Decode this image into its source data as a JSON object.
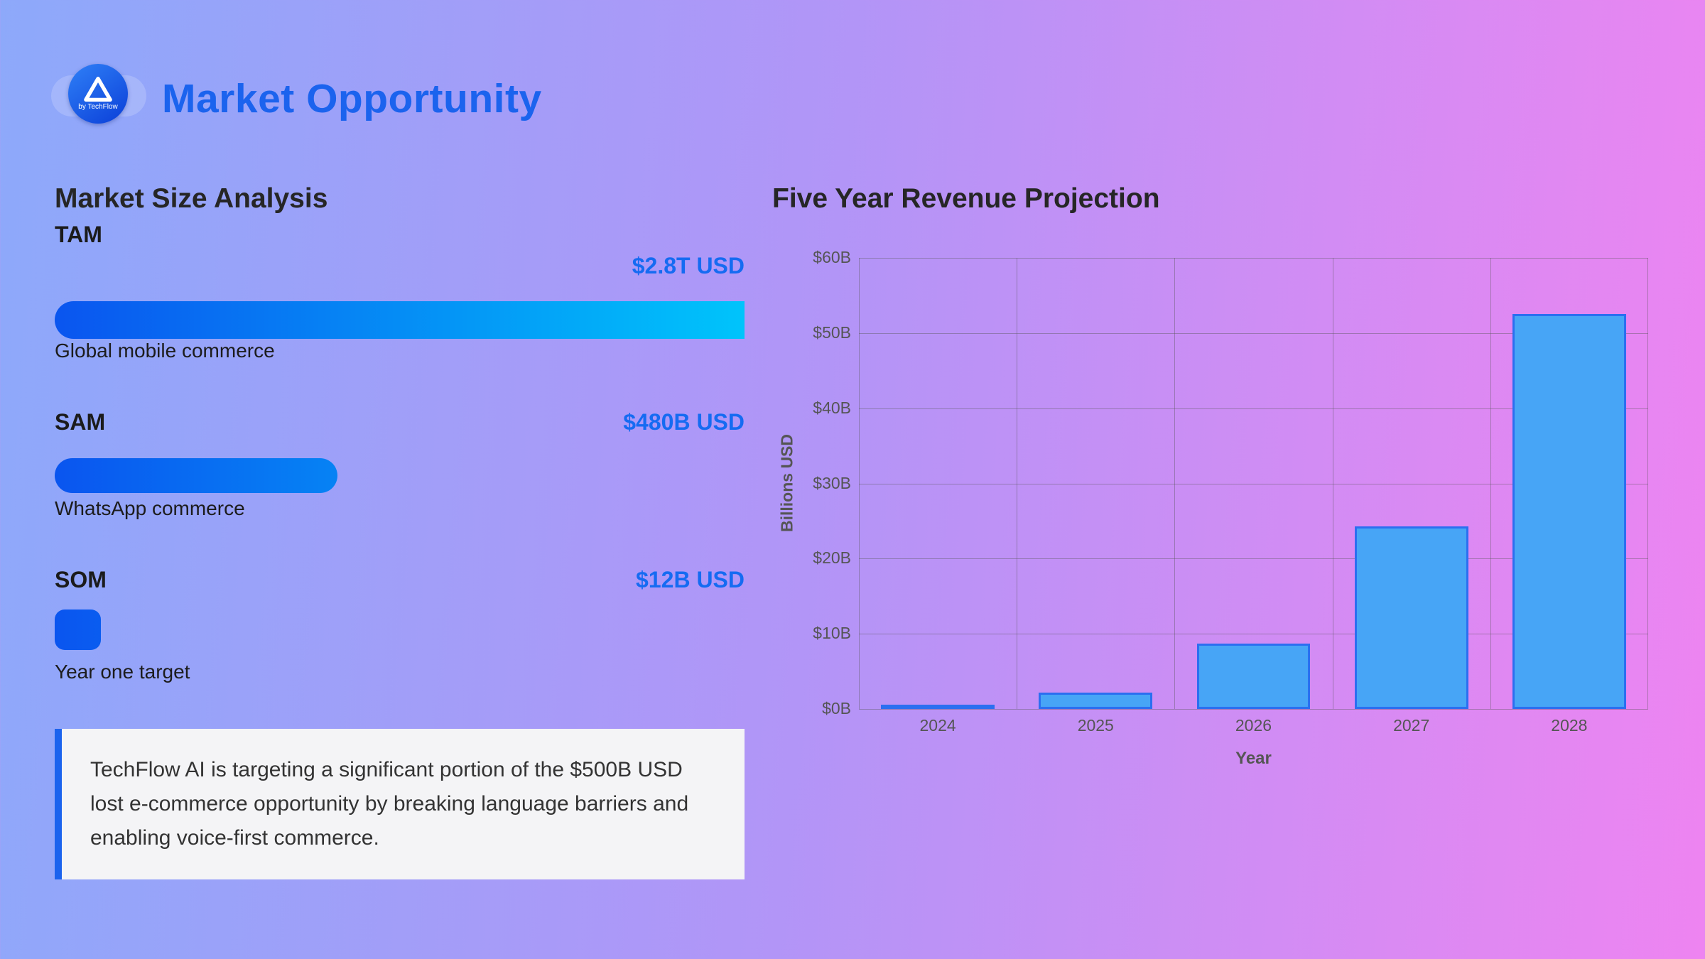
{
  "page": {
    "title": "Market Opportunity"
  },
  "logo": {
    "subtext": "by TechFlow"
  },
  "market_size": {
    "heading": "Market Size Analysis",
    "items": [
      {
        "label": "TAM",
        "value": "$2.8T USD",
        "description": "Global mobile commerce",
        "width_pct": 100
      },
      {
        "label": "SAM",
        "value": "$480B USD",
        "description": "WhatsApp commerce",
        "width_pct": 16.6
      },
      {
        "label": "SOM",
        "value": "$12B USD",
        "description": "Year one target",
        "width_pct": 2.7
      }
    ]
  },
  "note": {
    "text": "TechFlow AI is targeting a significant portion of the $500B USD lost e-commerce opportunity by breaking language barriers and enabling voice-first commerce."
  },
  "revenue_chart": {
    "heading": "Five Year Revenue Projection"
  },
  "chart_data": {
    "type": "bar",
    "title": "Five Year Revenue Projection",
    "categories": [
      "2024",
      "2025",
      "2026",
      "2027",
      "2028"
    ],
    "values": [
      0.5,
      2.2,
      8.7,
      24.3,
      52.5
    ],
    "xlabel": "Year",
    "ylabel": "Billions USD",
    "ylim": [
      0,
      60
    ],
    "yticks": [
      "$0B",
      "$10B",
      "$20B",
      "$30B",
      "$40B",
      "$50B",
      "$60B"
    ],
    "grid": true,
    "legend": false,
    "bar_fill": "#47a5f6",
    "bar_border": "#2b6ff0"
  },
  "colors": {
    "accent_blue": "#156bf2",
    "bg_left": "#8da9fa",
    "bg_right": "#ee84f1"
  }
}
